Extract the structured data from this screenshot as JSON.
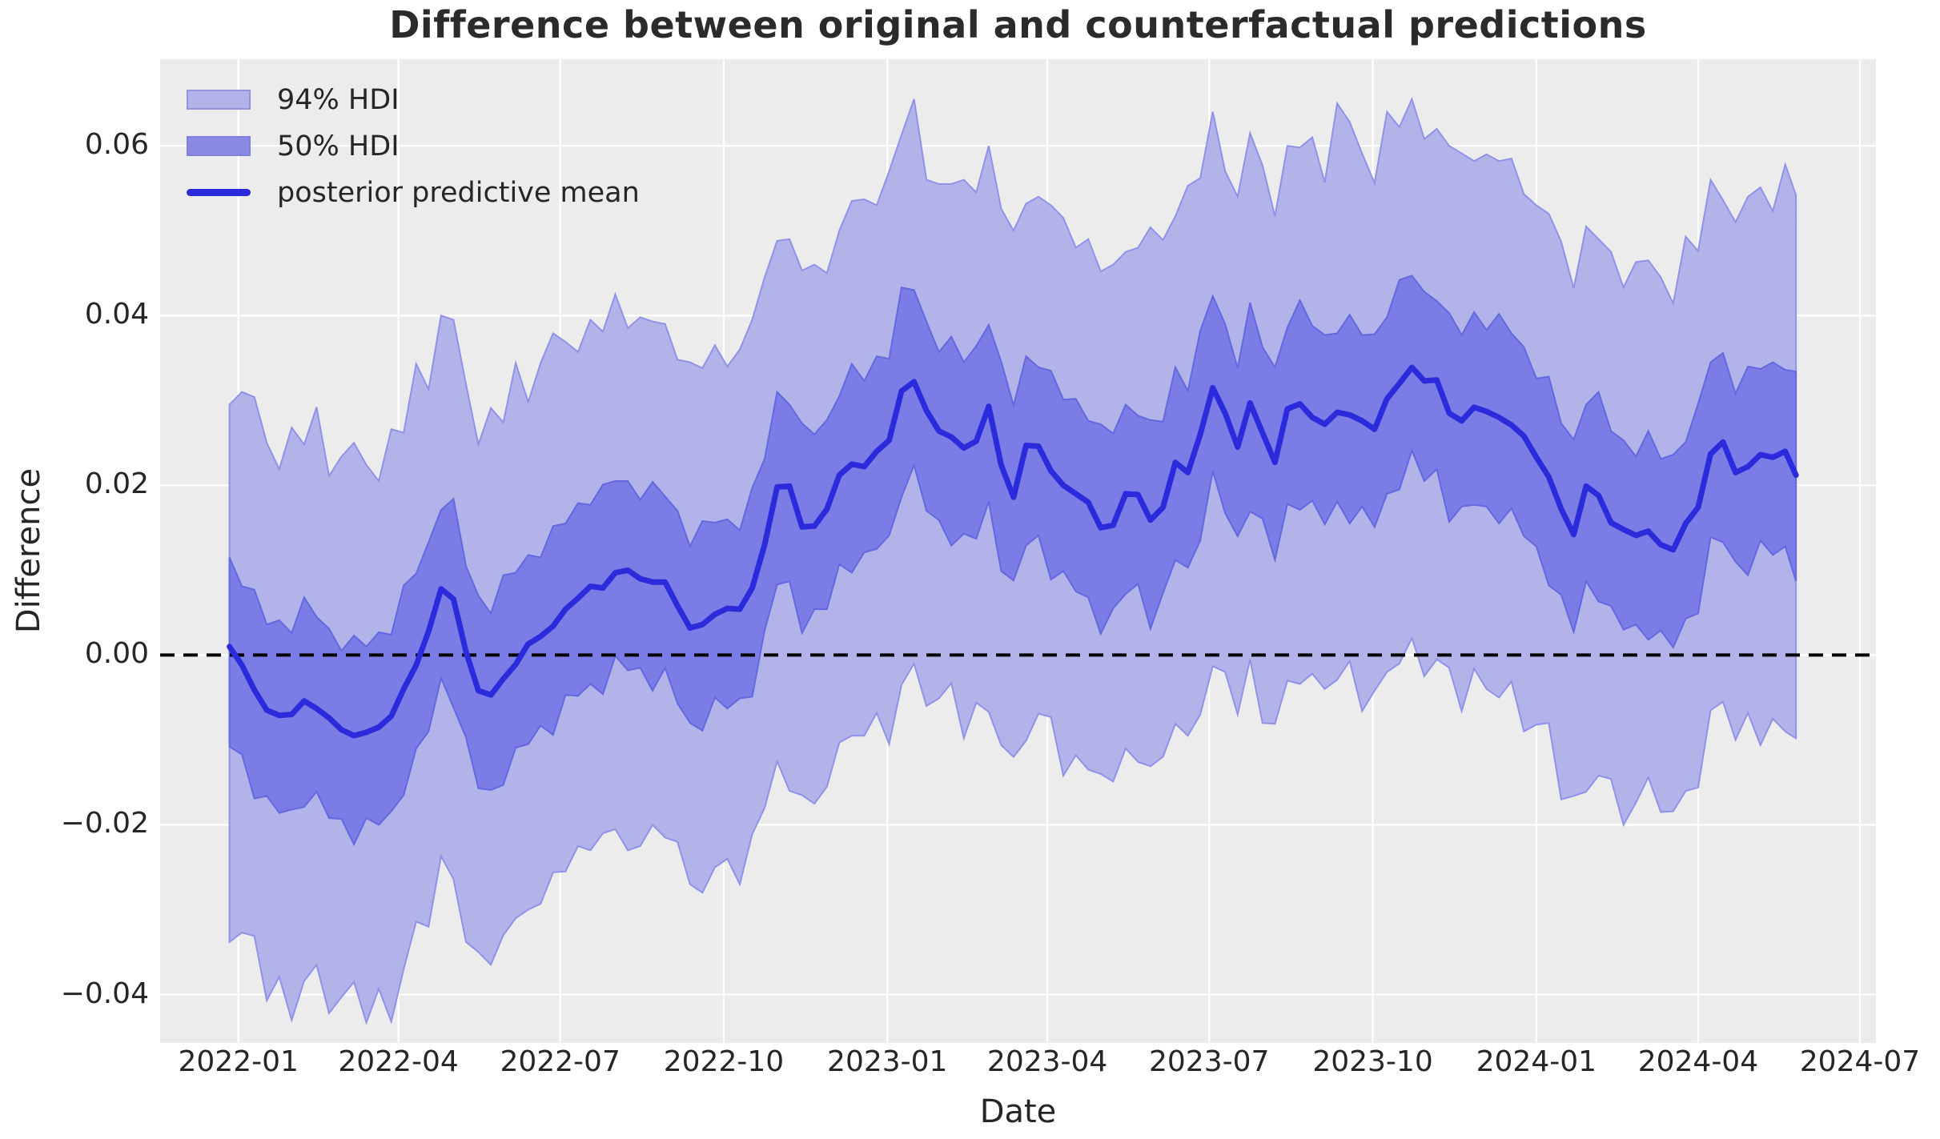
{
  "colors": {
    "figure_background": "#ffffff",
    "plot_background": "#ececec",
    "grid": "#ffffff",
    "hdi94_fill": "#b2b4e9",
    "hdi94_edge": "#8f92e8",
    "hdi50_fill": "#7b7ce5",
    "hdi50_edge": "#6468e0",
    "mean_line": "#2b2bdc",
    "zero_line": "#000000",
    "text": "#262626"
  },
  "legend": [
    {
      "label": "94% HDI",
      "type": "patch",
      "fill": "#b2b4e9",
      "edge": "#9294dd"
    },
    {
      "label": "50% HDI",
      "type": "patch",
      "fill": "#898be2",
      "edge": "#7e80db"
    },
    {
      "label": "posterior predictive mean",
      "type": "line",
      "color": "#2b2bdc"
    }
  ],
  "chart_data": {
    "type": "line",
    "title": "Difference between original and counterfactual predictions",
    "xlabel": "Date",
    "ylabel": "Difference",
    "grid": true,
    "legend_position": "upper-left",
    "xlim": [
      "2021-11-18",
      "2024-07-10"
    ],
    "ylim": [
      -0.0457,
      0.0702
    ],
    "zero_reference_line": {
      "value": 0.0,
      "style": "dashed"
    },
    "x_ticks": [
      {
        "label": "2022-01",
        "date": "2022-01-01"
      },
      {
        "label": "2022-04",
        "date": "2022-04-01"
      },
      {
        "label": "2022-07",
        "date": "2022-07-01"
      },
      {
        "label": "2022-10",
        "date": "2022-10-01"
      },
      {
        "label": "2023-01",
        "date": "2023-01-01"
      },
      {
        "label": "2023-04",
        "date": "2023-04-01"
      },
      {
        "label": "2023-07",
        "date": "2023-07-01"
      },
      {
        "label": "2023-10",
        "date": "2023-10-01"
      },
      {
        "label": "2024-01",
        "date": "2024-01-01"
      },
      {
        "label": "2024-04",
        "date": "2024-04-01"
      },
      {
        "label": "2024-07",
        "date": "2024-07-01"
      }
    ],
    "y_ticks": [
      {
        "label": "0.06",
        "value": 0.06
      },
      {
        "label": "0.04",
        "value": 0.04
      },
      {
        "label": "0.02",
        "value": 0.02
      },
      {
        "label": "0.00",
        "value": 0.0
      },
      {
        "label": "−0.02",
        "value": -0.02
      },
      {
        "label": "−0.04",
        "value": -0.04
      }
    ],
    "x": [
      "2021-12-27",
      "2022-01-03",
      "2022-01-10",
      "2022-01-17",
      "2022-01-24",
      "2022-01-31",
      "2022-02-07",
      "2022-02-14",
      "2022-02-21",
      "2022-02-28",
      "2022-03-07",
      "2022-03-14",
      "2022-03-21",
      "2022-03-28",
      "2022-04-04",
      "2022-04-11",
      "2022-04-18",
      "2022-04-25",
      "2022-05-02",
      "2022-05-09",
      "2022-05-16",
      "2022-05-23",
      "2022-05-30",
      "2022-06-06",
      "2022-06-13",
      "2022-06-20",
      "2022-06-27",
      "2022-07-04",
      "2022-07-11",
      "2022-07-18",
      "2022-07-25",
      "2022-08-01",
      "2022-08-08",
      "2022-08-15",
      "2022-08-22",
      "2022-08-29",
      "2022-09-05",
      "2022-09-12",
      "2022-09-19",
      "2022-09-26",
      "2022-10-03",
      "2022-10-10",
      "2022-10-17",
      "2022-10-24",
      "2022-10-31",
      "2022-11-07",
      "2022-11-14",
      "2022-11-21",
      "2022-11-28",
      "2022-12-05",
      "2022-12-12",
      "2022-12-19",
      "2022-12-26",
      "2023-01-02",
      "2023-01-09",
      "2023-01-16",
      "2023-01-23",
      "2023-01-30",
      "2023-02-06",
      "2023-02-13",
      "2023-02-20",
      "2023-02-27",
      "2023-03-06",
      "2023-03-13",
      "2023-03-20",
      "2023-03-27",
      "2023-04-03",
      "2023-04-10",
      "2023-04-17",
      "2023-04-24",
      "2023-05-01",
      "2023-05-08",
      "2023-05-15",
      "2023-05-22",
      "2023-05-29",
      "2023-06-05",
      "2023-06-12",
      "2023-06-19",
      "2023-06-26",
      "2023-07-03",
      "2023-07-10",
      "2023-07-17",
      "2023-07-24",
      "2023-07-31",
      "2023-08-07",
      "2023-08-14",
      "2023-08-21",
      "2023-08-28",
      "2023-09-04",
      "2023-09-11",
      "2023-09-18",
      "2023-09-25",
      "2023-10-02",
      "2023-10-09",
      "2023-10-16",
      "2023-10-23",
      "2023-10-30",
      "2023-11-06",
      "2023-11-13",
      "2023-11-20",
      "2023-11-27",
      "2023-12-04",
      "2023-12-11",
      "2023-12-18",
      "2023-12-25",
      "2024-01-01",
      "2024-01-08",
      "2024-01-15",
      "2024-01-22",
      "2024-01-29",
      "2024-02-05",
      "2024-02-12",
      "2024-02-19",
      "2024-02-26",
      "2024-03-04",
      "2024-03-11",
      "2024-03-18",
      "2024-03-25",
      "2024-04-01",
      "2024-04-08",
      "2024-04-15",
      "2024-04-22",
      "2024-04-29",
      "2024-05-06",
      "2024-05-13",
      "2024-05-20",
      "2024-05-26"
    ],
    "series": [
      {
        "name": "posterior predictive mean",
        "values": [
          0.001,
          -0.0012,
          -0.0041,
          -0.0065,
          -0.0071,
          -0.007,
          -0.0054,
          -0.0063,
          -0.0074,
          -0.0088,
          -0.0095,
          -0.0091,
          -0.0085,
          -0.0072,
          -0.004,
          -0.0012,
          0.0028,
          0.0078,
          0.0066,
          0.0004,
          -0.0042,
          -0.0047,
          -0.0028,
          -0.0011,
          0.0013,
          0.0022,
          0.0034,
          0.0054,
          0.0067,
          0.0081,
          0.0079,
          0.0097,
          0.01,
          0.009,
          0.0086,
          0.0086,
          0.0058,
          0.0032,
          0.0036,
          0.0048,
          0.0055,
          0.0054,
          0.0079,
          0.013,
          0.0198,
          0.0199,
          0.0151,
          0.0152,
          0.0172,
          0.0212,
          0.0225,
          0.0222,
          0.024,
          0.0253,
          0.0311,
          0.0322,
          0.0288,
          0.0264,
          0.0257,
          0.0244,
          0.0252,
          0.0293,
          0.0224,
          0.0186,
          0.0247,
          0.0246,
          0.0217,
          0.02,
          0.019,
          0.018,
          0.015,
          0.0153,
          0.019,
          0.0189,
          0.0159,
          0.0174,
          0.0227,
          0.0215,
          0.026,
          0.0315,
          0.0285,
          0.0245,
          0.0297,
          0.0262,
          0.0227,
          0.029,
          0.0296,
          0.028,
          0.0272,
          0.0286,
          0.0283,
          0.0276,
          0.0266,
          0.0302,
          0.032,
          0.0339,
          0.0323,
          0.0324,
          0.0285,
          0.0276,
          0.0292,
          0.0287,
          0.028,
          0.0271,
          0.0258,
          0.0233,
          0.021,
          0.0172,
          0.0142,
          0.0199,
          0.0188,
          0.0156,
          0.0148,
          0.0141,
          0.0146,
          0.013,
          0.0124,
          0.0155,
          0.0174,
          0.0237,
          0.0251,
          0.0215,
          0.0222,
          0.0236,
          0.0233,
          0.024,
          0.0212
        ]
      },
      {
        "name": "50% HDI upper",
        "values": [
          0.0115,
          0.0081,
          0.0077,
          0.0036,
          0.0041,
          0.0026,
          0.0068,
          0.0045,
          0.0031,
          0.0005,
          0.0023,
          0.001,
          0.0027,
          0.0024,
          0.0082,
          0.0096,
          0.0133,
          0.0171,
          0.0184,
          0.0105,
          0.007,
          0.0049,
          0.0094,
          0.0097,
          0.0118,
          0.0115,
          0.0152,
          0.0155,
          0.0179,
          0.0177,
          0.0201,
          0.0205,
          0.0205,
          0.0183,
          0.0204,
          0.0187,
          0.017,
          0.0128,
          0.0158,
          0.0156,
          0.016,
          0.0147,
          0.0197,
          0.0231,
          0.031,
          0.0295,
          0.0273,
          0.026,
          0.0277,
          0.0305,
          0.0343,
          0.0323,
          0.0352,
          0.0349,
          0.0433,
          0.043,
          0.0393,
          0.0357,
          0.0375,
          0.0345,
          0.0364,
          0.0389,
          0.0346,
          0.0294,
          0.0352,
          0.0339,
          0.0335,
          0.0301,
          0.0302,
          0.0276,
          0.0272,
          0.0261,
          0.0295,
          0.0282,
          0.0277,
          0.0275,
          0.0339,
          0.0311,
          0.0382,
          0.0423,
          0.039,
          0.0338,
          0.0415,
          0.0363,
          0.0339,
          0.0386,
          0.0418,
          0.0388,
          0.0377,
          0.0379,
          0.0401,
          0.0377,
          0.0378,
          0.0398,
          0.0442,
          0.0447,
          0.0428,
          0.0417,
          0.0403,
          0.0377,
          0.0404,
          0.0383,
          0.0402,
          0.0379,
          0.0363,
          0.0326,
          0.0328,
          0.0273,
          0.0254,
          0.0295,
          0.031,
          0.0264,
          0.0253,
          0.0234,
          0.0264,
          0.0231,
          0.0236,
          0.0251,
          0.0296,
          0.0345,
          0.0356,
          0.0308,
          0.034,
          0.0337,
          0.0345,
          0.0336,
          0.0334
        ]
      },
      {
        "name": "50% HDI lower",
        "values": [
          -0.0108,
          -0.0117,
          -0.0169,
          -0.0166,
          -0.0186,
          -0.0182,
          -0.0179,
          -0.0161,
          -0.0192,
          -0.0193,
          -0.0223,
          -0.0192,
          -0.02,
          -0.0184,
          -0.0165,
          -0.011,
          -0.009,
          -0.0027,
          -0.0062,
          -0.0097,
          -0.0157,
          -0.0159,
          -0.0153,
          -0.0109,
          -0.0105,
          -0.0083,
          -0.0094,
          -0.0047,
          -0.0048,
          -0.0034,
          -0.0046,
          -0.0001,
          -0.0018,
          -0.0015,
          -0.0042,
          -0.0015,
          -0.0057,
          -0.008,
          -0.0089,
          -0.005,
          -0.0063,
          -0.0051,
          -0.0049,
          0.0029,
          0.0083,
          0.0087,
          0.0026,
          0.0054,
          0.0054,
          0.0107,
          0.0097,
          0.0121,
          0.0125,
          0.0141,
          0.0186,
          0.0224,
          0.017,
          0.0159,
          0.0129,
          0.0143,
          0.0137,
          0.0181,
          0.0099,
          0.0088,
          0.0129,
          0.0141,
          0.0089,
          0.0099,
          0.0075,
          0.0068,
          0.0025,
          0.0055,
          0.0072,
          0.0084,
          0.0031,
          0.0073,
          0.0112,
          0.0103,
          0.0135,
          0.0217,
          0.0167,
          0.014,
          0.0169,
          0.0161,
          0.0112,
          0.0178,
          0.0171,
          0.0182,
          0.0154,
          0.0181,
          0.0155,
          0.0175,
          0.0151,
          0.019,
          0.0195,
          0.0241,
          0.0205,
          0.0219,
          0.0157,
          0.0175,
          0.0177,
          0.0175,
          0.0155,
          0.0173,
          0.014,
          0.0128,
          0.0082,
          0.0071,
          0.0027,
          0.0087,
          0.0063,
          0.0058,
          0.003,
          0.0036,
          0.0018,
          0.0029,
          0.0009,
          0.0043,
          0.0049,
          0.0139,
          0.0133,
          0.011,
          0.0094,
          0.0135,
          0.0118,
          0.0128,
          0.0087
        ]
      },
      {
        "name": "94% HDI upper",
        "values": [
          0.0295,
          0.031,
          0.0304,
          0.025,
          0.0219,
          0.0268,
          0.0248,
          0.0292,
          0.0211,
          0.0234,
          0.025,
          0.0224,
          0.0205,
          0.0266,
          0.0262,
          0.0343,
          0.0313,
          0.04,
          0.0395,
          0.0319,
          0.0248,
          0.0291,
          0.0274,
          0.0344,
          0.0298,
          0.0344,
          0.0379,
          0.0369,
          0.0357,
          0.0395,
          0.0381,
          0.0425,
          0.0385,
          0.0398,
          0.0393,
          0.039,
          0.0348,
          0.0345,
          0.0338,
          0.0365,
          0.034,
          0.036,
          0.0395,
          0.0445,
          0.0488,
          0.049,
          0.0453,
          0.046,
          0.045,
          0.05,
          0.0535,
          0.0537,
          0.053,
          0.057,
          0.0613,
          0.0655,
          0.056,
          0.0555,
          0.0555,
          0.056,
          0.0545,
          0.06,
          0.0526,
          0.05,
          0.0532,
          0.054,
          0.053,
          0.0515,
          0.048,
          0.049,
          0.0452,
          0.046,
          0.0475,
          0.048,
          0.0504,
          0.0489,
          0.0517,
          0.0553,
          0.0562,
          0.064,
          0.057,
          0.054,
          0.0615,
          0.0577,
          0.0517,
          0.06,
          0.0598,
          0.061,
          0.0557,
          0.065,
          0.0628,
          0.0591,
          0.0556,
          0.064,
          0.0622,
          0.0655,
          0.0608,
          0.062,
          0.06,
          0.0591,
          0.0582,
          0.059,
          0.0582,
          0.0585,
          0.0543,
          0.053,
          0.052,
          0.0487,
          0.0432,
          0.0505,
          0.049,
          0.0475,
          0.0433,
          0.0463,
          0.0465,
          0.0445,
          0.0414,
          0.0493,
          0.0476,
          0.056,
          0.0536,
          0.051,
          0.054,
          0.0551,
          0.0523,
          0.0578,
          0.0542
        ]
      },
      {
        "name": "94% HDI lower",
        "values": [
          -0.0338,
          -0.0327,
          -0.0331,
          -0.0407,
          -0.0379,
          -0.043,
          -0.0384,
          -0.0365,
          -0.0422,
          -0.0403,
          -0.0385,
          -0.0433,
          -0.0393,
          -0.0432,
          -0.037,
          -0.0314,
          -0.032,
          -0.0237,
          -0.0264,
          -0.0338,
          -0.035,
          -0.0365,
          -0.033,
          -0.031,
          -0.03,
          -0.0293,
          -0.0256,
          -0.0255,
          -0.0225,
          -0.023,
          -0.021,
          -0.0205,
          -0.023,
          -0.0225,
          -0.02,
          -0.0215,
          -0.022,
          -0.027,
          -0.028,
          -0.025,
          -0.024,
          -0.027,
          -0.0211,
          -0.018,
          -0.0125,
          -0.016,
          -0.0165,
          -0.0175,
          -0.0155,
          -0.0103,
          -0.0095,
          -0.0095,
          -0.0068,
          -0.0105,
          -0.0035,
          -0.001,
          -0.006,
          -0.0051,
          -0.0033,
          -0.0098,
          -0.0056,
          -0.0067,
          -0.0106,
          -0.012,
          -0.0101,
          -0.0069,
          -0.0073,
          -0.0142,
          -0.0118,
          -0.0135,
          -0.014,
          -0.0149,
          -0.011,
          -0.0126,
          -0.0131,
          -0.012,
          -0.0081,
          -0.0095,
          -0.007,
          -0.0013,
          -0.002,
          -0.007,
          -0.0005,
          -0.008,
          -0.0081,
          -0.003,
          -0.0034,
          -0.0022,
          -0.004,
          -0.0029,
          -0.0007,
          -0.0066,
          -0.0042,
          -0.002,
          -0.001,
          0.002,
          -0.0025,
          -0.0005,
          -0.0015,
          -0.0066,
          -0.0016,
          -0.004,
          -0.005,
          -0.0031,
          -0.009,
          -0.0082,
          -0.008,
          -0.017,
          -0.0166,
          -0.0161,
          -0.0142,
          -0.0146,
          -0.02,
          -0.0174,
          -0.0144,
          -0.0185,
          -0.0184,
          -0.016,
          -0.0156,
          -0.0065,
          -0.0055,
          -0.01,
          -0.0068,
          -0.0106,
          -0.0075,
          -0.009,
          -0.0098
        ]
      }
    ]
  }
}
